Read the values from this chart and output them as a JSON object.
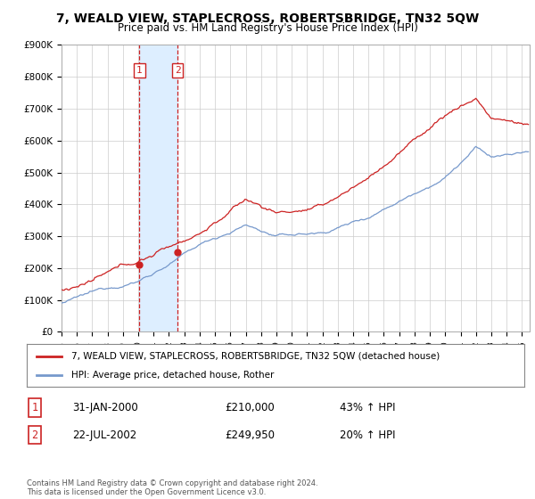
{
  "title": "7, WEALD VIEW, STAPLECROSS, ROBERTSBRIDGE, TN32 5QW",
  "subtitle": "Price paid vs. HM Land Registry's House Price Index (HPI)",
  "ylabel_ticks": [
    "£0",
    "£100K",
    "£200K",
    "£300K",
    "£400K",
    "£500K",
    "£600K",
    "£700K",
    "£800K",
    "£900K"
  ],
  "ytick_values": [
    0,
    100000,
    200000,
    300000,
    400000,
    500000,
    600000,
    700000,
    800000,
    900000
  ],
  "ylim": [
    0,
    900000
  ],
  "xlim_start": 1995.0,
  "xlim_end": 2025.5,
  "red_color": "#cc2222",
  "blue_color": "#7799cc",
  "transaction1_x": 2000.083,
  "transaction1_y": 210000,
  "transaction1_label": "1",
  "transaction2_x": 2002.554,
  "transaction2_y": 249950,
  "transaction2_label": "2",
  "shade_color": "#ddeeff",
  "vline_color": "#cc2222",
  "legend_line1": "7, WEALD VIEW, STAPLECROSS, ROBERTSBRIDGE, TN32 5QW (detached house)",
  "legend_line2": "HPI: Average price, detached house, Rother",
  "annotation1_date": "31-JAN-2000",
  "annotation1_price": "£210,000",
  "annotation1_hpi": "43% ↑ HPI",
  "annotation2_date": "22-JUL-2002",
  "annotation2_price": "£249,950",
  "annotation2_hpi": "20% ↑ HPI",
  "footer": "Contains HM Land Registry data © Crown copyright and database right 2024.\nThis data is licensed under the Open Government Licence v3.0.",
  "background_color": "#ffffff",
  "grid_color": "#cccccc",
  "noise_seed": 12345
}
